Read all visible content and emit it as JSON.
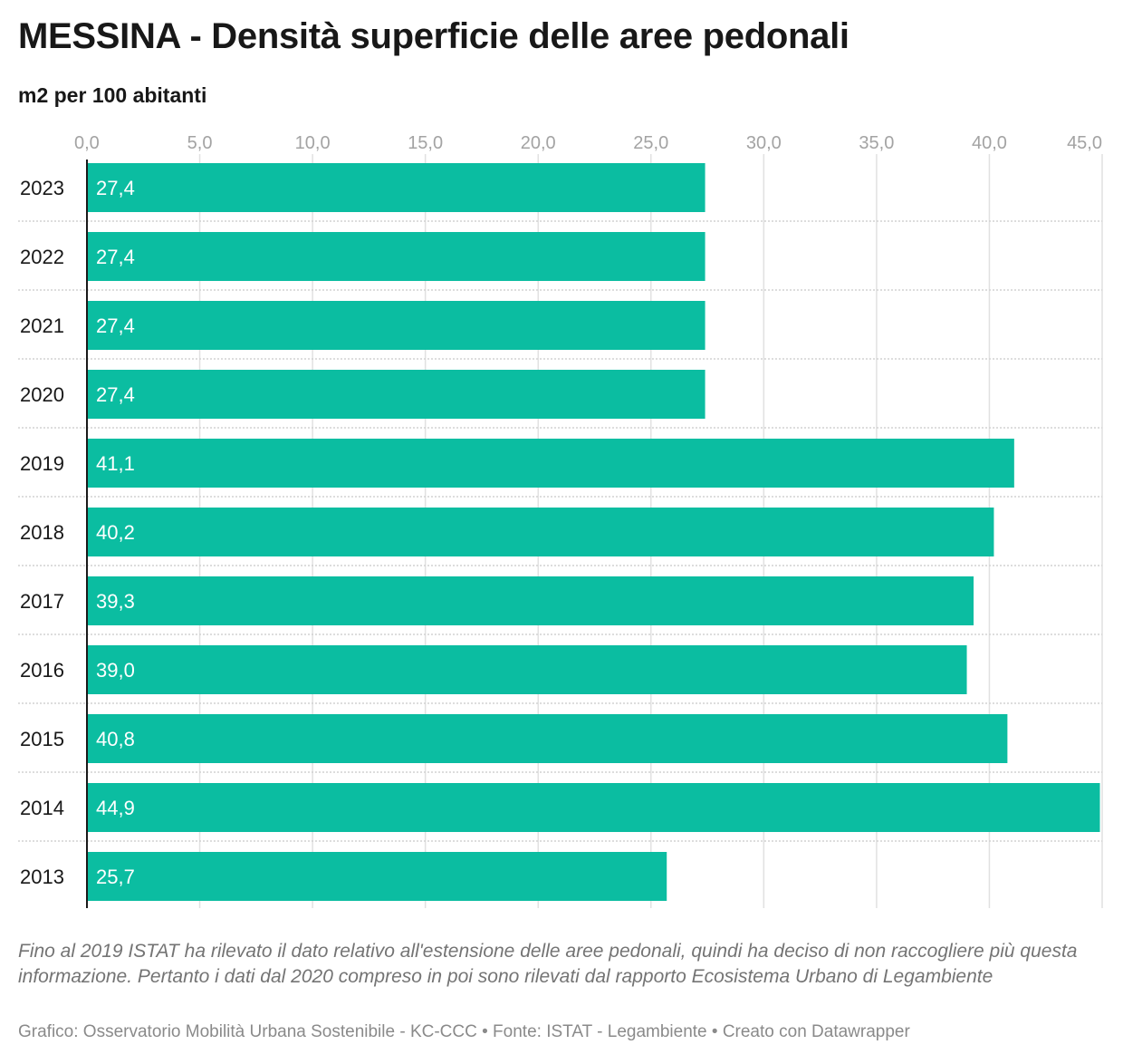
{
  "header": {
    "title": "MESSINA - Densità superficie delle aree pedonali",
    "subtitle": "m2 per 100 abitanti"
  },
  "chart_data": {
    "type": "bar",
    "orientation": "horizontal",
    "categories": [
      "2023",
      "2022",
      "2021",
      "2020",
      "2019",
      "2018",
      "2017",
      "2016",
      "2015",
      "2014",
      "2013"
    ],
    "values": [
      27.4,
      27.4,
      27.4,
      27.4,
      41.1,
      40.2,
      39.3,
      39.0,
      40.8,
      44.9,
      25.7
    ],
    "value_labels": [
      "27,4",
      "27,4",
      "27,4",
      "27,4",
      "41,1",
      "40,2",
      "39,3",
      "39,0",
      "40,8",
      "44,9",
      "25,7"
    ],
    "xlim": [
      0,
      45
    ],
    "x_ticks": [
      0,
      5,
      10,
      15,
      20,
      25,
      30,
      35,
      40,
      45
    ],
    "x_tick_labels": [
      "0,0",
      "5,0",
      "10,0",
      "15,0",
      "20,0",
      "25,0",
      "30,0",
      "35,0",
      "40,0",
      "45,0"
    ],
    "x_axis_position": "top",
    "grid": true,
    "legend": "none",
    "bar_color": "#0bbda1",
    "label_color": "#ffffff"
  },
  "notes": {
    "text": "Fino al 2019 ISTAT ha rilevato il dato relativo all'estensione delle aree pedonali, quindi ha deciso di non raccogliere più questa informazione. Pertanto i dati dal 2020 compreso in poi sono rilevati dal rapporto Ecosistema Urbano di Legambiente"
  },
  "footer": {
    "text": "Grafico: Osservatorio Mobilità Urbana Sostenibile - KC-CCC • Fonte: ISTAT - Legambiente • Creato con Datawrapper"
  }
}
